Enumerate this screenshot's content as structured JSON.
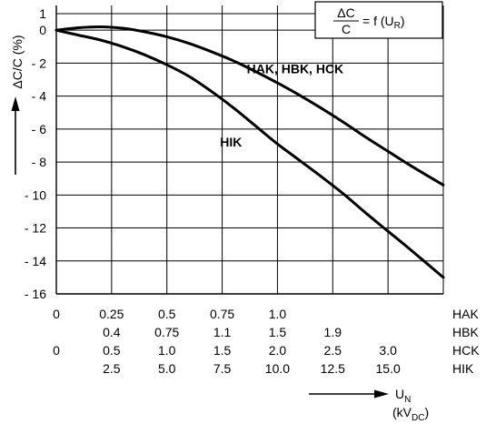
{
  "chart_data": {
    "type": "line",
    "formula": {
      "numerator": "ΔC",
      "denominator": "C",
      "rest": "= f (U",
      "subscript": "R",
      "close": ")"
    },
    "ylabel": "ΔC/C (%)",
    "ylim": [
      -16,
      1.5
    ],
    "yticks": [
      {
        "v": 1,
        "label": "1"
      },
      {
        "v": 0,
        "label": "0"
      },
      {
        "v": -2,
        "label": "- 2"
      },
      {
        "v": -4,
        "label": "- 4"
      },
      {
        "v": -6,
        "label": "- 6"
      },
      {
        "v": -8,
        "label": "- 8"
      },
      {
        "v": -10,
        "label": "- 10"
      },
      {
        "v": -12,
        "label": "- 12"
      },
      {
        "v": -14,
        "label": "- 14"
      },
      {
        "v": -16,
        "label": "- 16"
      }
    ],
    "x_scale": {
      "name": "HIK",
      "unit": "kV",
      "unit_sub": "DC",
      "min": 0,
      "max": 17.5,
      "gridlines": [
        2.5,
        5.0,
        7.5,
        10.0,
        12.5,
        15.0,
        17.5
      ]
    },
    "x_tick_rows": [
      {
        "name": "HAK",
        "ticks": [
          {
            "hik": 0,
            "label": "0"
          },
          {
            "hik": 2.5,
            "label": "0.25"
          },
          {
            "hik": 5.0,
            "label": "0.5"
          },
          {
            "hik": 7.5,
            "label": "0.75"
          },
          {
            "hik": 10.0,
            "label": "1.0"
          }
        ]
      },
      {
        "name": "HBK",
        "ticks": [
          {
            "hik": 2.5,
            "label": "0.4"
          },
          {
            "hik": 5.0,
            "label": "0.75"
          },
          {
            "hik": 7.5,
            "label": "1.1"
          },
          {
            "hik": 10.0,
            "label": "1.5"
          },
          {
            "hik": 12.5,
            "label": "1.9"
          }
        ]
      },
      {
        "name": "HCK",
        "ticks": [
          {
            "hik": 0,
            "label": "0"
          },
          {
            "hik": 2.5,
            "label": "0.5"
          },
          {
            "hik": 5.0,
            "label": "1.0"
          },
          {
            "hik": 7.5,
            "label": "1.5"
          },
          {
            "hik": 10.0,
            "label": "2.0"
          },
          {
            "hik": 12.5,
            "label": "2.5"
          },
          {
            "hik": 15.0,
            "label": "3.0"
          }
        ]
      },
      {
        "name": "HIK",
        "ticks": [
          {
            "hik": 2.5,
            "label": "2.5"
          },
          {
            "hik": 5.0,
            "label": "5.0"
          },
          {
            "hik": 7.5,
            "label": "7.5"
          },
          {
            "hik": 10.0,
            "label": "10.0"
          },
          {
            "hik": 12.5,
            "label": "12.5"
          },
          {
            "hik": 15.0,
            "label": "15.0"
          }
        ]
      }
    ],
    "xlabel": {
      "symbol": "U",
      "symbol_sub": "N"
    },
    "series": [
      {
        "name": "HAK, HBK, HCK",
        "x": [
          0,
          1.0,
          2.0,
          3.0,
          4.0,
          5.0,
          6.0,
          7.0,
          8.0,
          9.0,
          10.0,
          11.0,
          12.0,
          13.0,
          14.0,
          15.0,
          16.0,
          17.5
        ],
        "y": [
          0,
          0.15,
          0.2,
          0.12,
          -0.1,
          -0.4,
          -0.8,
          -1.3,
          -1.85,
          -2.5,
          -3.2,
          -3.95,
          -4.75,
          -5.6,
          -6.5,
          -7.35,
          -8.2,
          -9.4
        ]
      },
      {
        "name": "HIK",
        "x": [
          0,
          1.0,
          2.0,
          3.0,
          4.0,
          5.0,
          6.0,
          7.0,
          8.0,
          9.0,
          10.0,
          11.0,
          12.0,
          13.0,
          14.0,
          15.0,
          16.0,
          17.5
        ],
        "y": [
          0,
          -0.3,
          -0.6,
          -1.0,
          -1.5,
          -2.1,
          -2.8,
          -3.7,
          -4.7,
          -5.8,
          -6.9,
          -7.9,
          -8.9,
          -9.95,
          -11.1,
          -12.2,
          -13.3,
          -15.0
        ]
      }
    ],
    "grid": true
  }
}
